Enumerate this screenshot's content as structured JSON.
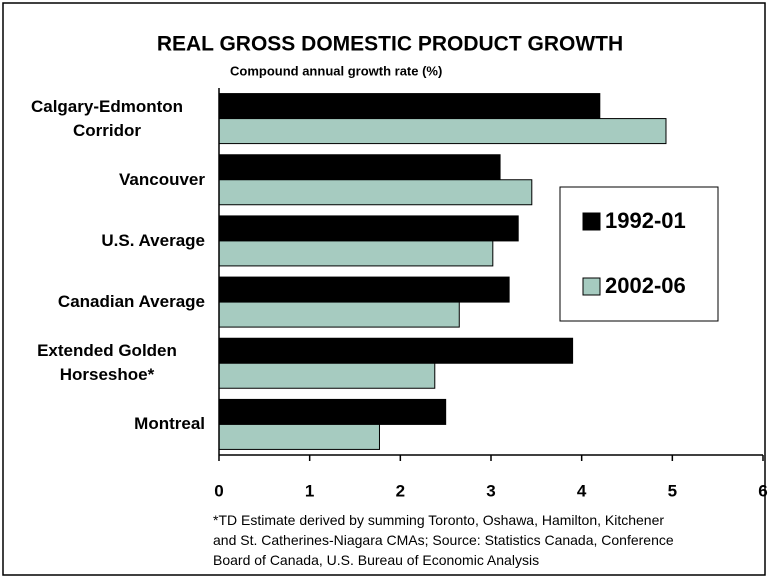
{
  "chart_data": {
    "type": "hbar",
    "title": "REAL GROSS DOMESTIC PRODUCT GROWTH",
    "subtitle": "Compound annual growth rate (%)",
    "categories": [
      "Calgary-Edmonton Corridor",
      "Vancouver",
      "U.S. Average",
      "Canadian Average",
      "Extended Golden Horseshoe*",
      "Montreal"
    ],
    "series": [
      {
        "name": "1992-01",
        "color": "#000000",
        "values": [
          4.2,
          3.1,
          3.3,
          3.2,
          3.9,
          2.5
        ]
      },
      {
        "name": "2002-06",
        "color": "#a6cbc0",
        "values": [
          4.93,
          3.45,
          3.02,
          2.65,
          2.38,
          1.77
        ]
      }
    ],
    "xlim": [
      0,
      6
    ],
    "xticks": [
      0,
      1,
      2,
      3,
      4,
      5,
      6
    ],
    "legend": "right",
    "notes": [
      "*TD Estimate derived by summing Toronto, Oshawa, Hamilton, Kitchener",
      "and St. Catherines-Niagara CMAs; Source: Statistics Canada, Conference",
      "Board of Canada, U.S. Bureau of Economic Analysis"
    ]
  }
}
